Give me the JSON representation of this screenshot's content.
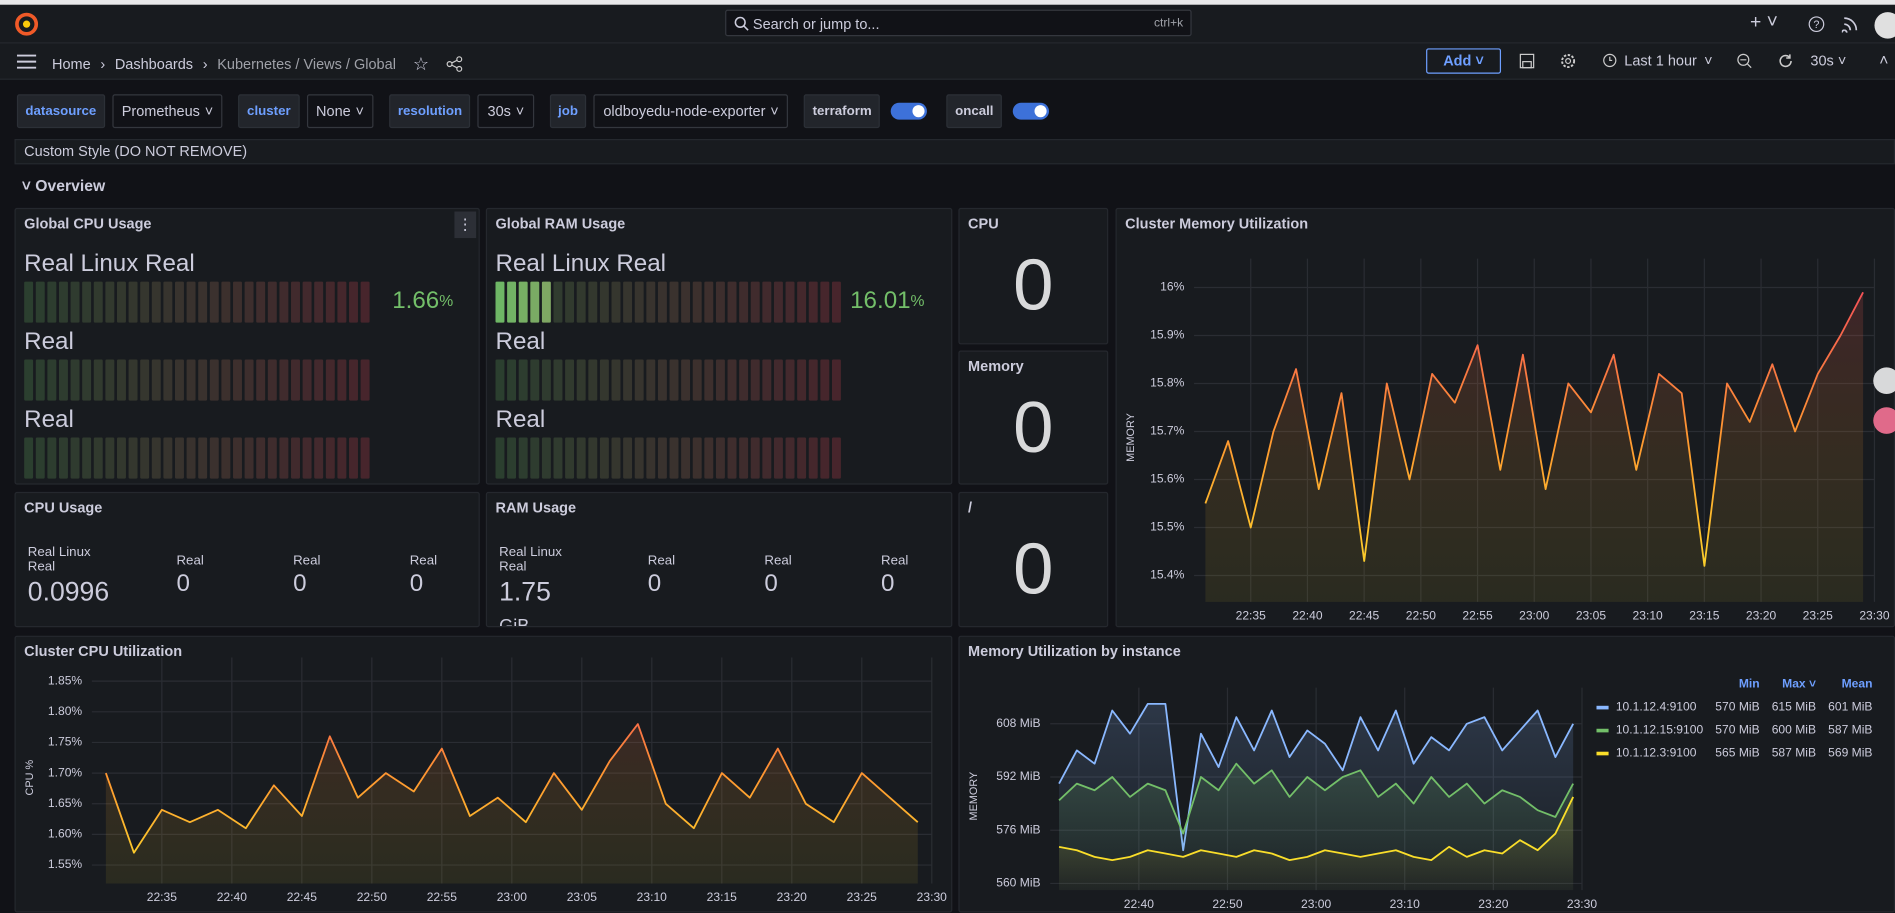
{
  "topbar": {
    "search": "Search or jump to...",
    "shortcut": "ctrl+k"
  },
  "breadcrumbs": [
    "Home",
    "Dashboards",
    "Kubernetes / Views / Global"
  ],
  "toolbar": {
    "add": "Add",
    "time_range": "Last 1 hour",
    "refresh": "30s"
  },
  "variables": [
    {
      "label": "datasource",
      "value": "Prometheus"
    },
    {
      "label": "cluster",
      "value": "None"
    },
    {
      "label": "resolution",
      "value": "30s"
    },
    {
      "label": "job",
      "value": "oldboyedu-node-exporter"
    },
    {
      "label": "terraform",
      "toggle": true
    },
    {
      "label": "oncall",
      "toggle": true
    }
  ],
  "rows": {
    "custom_style": "Custom Style (DO NOT REMOVE)",
    "overview": "Overview"
  },
  "bar_gauges": [
    {
      "title": "Global CPU Usage",
      "min": 0,
      "max": 100,
      "rows": [
        {
          "name": "Real Linux Real",
          "value": 1.66,
          "unit": "%"
        },
        {
          "name": "Real"
        },
        {
          "name": "Real"
        }
      ]
    },
    {
      "title": "Global RAM Usage",
      "min": 0,
      "max": 100,
      "rows": [
        {
          "name": "Real Linux Real",
          "value": 16.01,
          "unit": "%"
        },
        {
          "name": "Real"
        },
        {
          "name": "Real"
        }
      ]
    }
  ],
  "stats": [
    {
      "title": "CPU Usage",
      "items": [
        {
          "name": "Real Linux Real",
          "value": 0.0996
        },
        {
          "name": "Real",
          "value": 0
        },
        {
          "name": "Real",
          "value": 0
        },
        {
          "name": "Real",
          "value": 0
        }
      ]
    },
    {
      "title": "RAM Usage",
      "items": [
        {
          "name": "Real Linux Real",
          "value": 1.75,
          "unit": "GiB"
        },
        {
          "name": "Real",
          "value": 0
        },
        {
          "name": "Real",
          "value": 0
        },
        {
          "name": "Real",
          "value": 0
        }
      ]
    }
  ],
  "big_stats": [
    {
      "title": "CPU",
      "value": 0
    },
    {
      "title": "Memory",
      "value": 0
    },
    {
      "title": "/",
      "value": 0
    }
  ],
  "chart_data": [
    {
      "type": "line",
      "title": "Cluster Memory Utilization",
      "y_label": "MEMORY",
      "x": [
        "22:31",
        "22:33",
        "22:35",
        "22:37",
        "22:39",
        "22:41",
        "22:43",
        "22:45",
        "22:47",
        "22:49",
        "22:51",
        "22:53",
        "22:55",
        "22:57",
        "22:59",
        "23:01",
        "23:03",
        "23:05",
        "23:07",
        "23:09",
        "23:11",
        "23:13",
        "23:15",
        "23:17",
        "23:19",
        "23:21",
        "23:23",
        "23:25",
        "23:27",
        "23:29"
      ],
      "xlim": [
        "22:30",
        "23:30"
      ],
      "xticks": [
        "22:35",
        "22:40",
        "22:45",
        "22:50",
        "22:55",
        "23:00",
        "23:05",
        "23:10",
        "23:15",
        "23:20",
        "23:25",
        "23:30"
      ],
      "ylim": [
        15.345,
        16.03
      ],
      "yticks": [
        {
          "value": 15.4,
          "label": "15.4%"
        },
        {
          "value": 15.5,
          "label": "15.5%"
        },
        {
          "value": 15.6,
          "label": "15.6%"
        },
        {
          "value": 15.7,
          "label": "15.7%"
        },
        {
          "value": 15.8,
          "label": "15.8%"
        },
        {
          "value": 15.9,
          "label": "15.9%"
        },
        {
          "value": 16,
          "label": "16%"
        }
      ],
      "grid": true,
      "series": [
        {
          "colors": [
            "#fade2a",
            "#ff9830",
            "#f2495c"
          ],
          "values": [
            15.55,
            15.68,
            15.5,
            15.7,
            15.83,
            15.58,
            15.78,
            15.43,
            15.8,
            15.6,
            15.82,
            15.76,
            15.88,
            15.62,
            15.86,
            15.58,
            15.8,
            15.74,
            15.86,
            15.62,
            15.82,
            15.78,
            15.42,
            15.8,
            15.72,
            15.84,
            15.7,
            15.82,
            15.9,
            15.99
          ]
        }
      ]
    },
    {
      "type": "line",
      "title": "Cluster CPU Utilization",
      "y_label": "CPU %",
      "x": [
        "22:31",
        "22:33",
        "22:35",
        "22:37",
        "22:39",
        "22:41",
        "22:43",
        "22:45",
        "22:47",
        "22:49",
        "22:51",
        "22:53",
        "22:55",
        "22:57",
        "22:59",
        "23:01",
        "23:03",
        "23:05",
        "23:07",
        "23:09",
        "23:11",
        "23:13",
        "23:15",
        "23:17",
        "23:19",
        "23:21",
        "23:23",
        "23:25",
        "23:27",
        "23:29"
      ],
      "xlim": [
        "22:30",
        "23:30"
      ],
      "xticks": [
        "22:35",
        "22:40",
        "22:45",
        "22:50",
        "22:55",
        "23:00",
        "23:05",
        "23:10",
        "23:15",
        "23:20",
        "23:25",
        "23:30"
      ],
      "ylim": [
        1.52,
        1.865
      ],
      "yticks": [
        {
          "value": 1.55,
          "label": "1.55%"
        },
        {
          "value": 1.6,
          "label": "1.60%"
        },
        {
          "value": 1.65,
          "label": "1.65%"
        },
        {
          "value": 1.7,
          "label": "1.70%"
        },
        {
          "value": 1.75,
          "label": "1.75%"
        },
        {
          "value": 1.8,
          "label": "1.80%"
        },
        {
          "value": 1.85,
          "label": "1.85%"
        }
      ],
      "grid": true,
      "series": [
        {
          "colors": [
            "#fade2a",
            "#ff9830",
            "#f2495c"
          ],
          "values": [
            1.7,
            1.57,
            1.64,
            1.62,
            1.64,
            1.61,
            1.68,
            1.63,
            1.76,
            1.66,
            1.7,
            1.67,
            1.74,
            1.63,
            1.66,
            1.62,
            1.7,
            1.64,
            1.72,
            1.78,
            1.65,
            1.61,
            1.7,
            1.66,
            1.74,
            1.65,
            1.62,
            1.7,
            1.66,
            1.62
          ]
        }
      ]
    },
    {
      "type": "line",
      "title": "Memory Utilization by instance",
      "y_label": "MEMORY",
      "x": [
        "22:31",
        "22:33",
        "22:35",
        "22:37",
        "22:39",
        "22:41",
        "22:43",
        "22:45",
        "22:47",
        "22:49",
        "22:51",
        "22:53",
        "22:55",
        "22:57",
        "22:59",
        "23:01",
        "23:03",
        "23:05",
        "23:07",
        "23:09",
        "23:11",
        "23:13",
        "23:15",
        "23:17",
        "23:19",
        "23:21",
        "23:23",
        "23:25",
        "23:27",
        "23:29"
      ],
      "xlim": [
        "22:30",
        "23:30"
      ],
      "xticks": [
        "22:40",
        "22:50",
        "23:00",
        "23:10",
        "23:20",
        "23:30"
      ],
      "ylim": [
        558,
        614.5
      ],
      "yticks": [
        {
          "value": 560,
          "label": "560 MiB"
        },
        {
          "value": 576,
          "label": "576 MiB"
        },
        {
          "value": 592,
          "label": "592 MiB"
        },
        {
          "value": 608,
          "label": "608 MiB"
        }
      ],
      "grid": true,
      "legend": "right",
      "legend_columns": [
        "Min",
        "Max",
        "Mean"
      ],
      "series": [
        {
          "name": "10.1.12.4:9100",
          "color": "#8ab8ff",
          "values": [
            590,
            600,
            596,
            612,
            605,
            614,
            614,
            570,
            605,
            595,
            610,
            600,
            612,
            598,
            606,
            602,
            594,
            610,
            600,
            612,
            596,
            604,
            600,
            608,
            610,
            600,
            606,
            612,
            598,
            608
          ],
          "legend_values": [
            "570 MiB",
            "615 MiB",
            "601 MiB"
          ]
        },
        {
          "name": "10.1.12.15:9100",
          "color": "#73bf69",
          "values": [
            585,
            590,
            588,
            592,
            586,
            590,
            588,
            575,
            592,
            588,
            596,
            590,
            594,
            586,
            592,
            588,
            592,
            594,
            586,
            590,
            584,
            592,
            586,
            590,
            584,
            588,
            586,
            582,
            580,
            590
          ],
          "legend_values": [
            "570 MiB",
            "600 MiB",
            "587 MiB"
          ]
        },
        {
          "name": "10.1.12.3:9100",
          "color": "#fade2a",
          "values": [
            571,
            570,
            568,
            567,
            568,
            570,
            569,
            568,
            570,
            569,
            568,
            570,
            569,
            567,
            568,
            570,
            569,
            568,
            569,
            570,
            568,
            567,
            571,
            568,
            570,
            569,
            573,
            570,
            575,
            586
          ],
          "legend_values": [
            "565 MiB",
            "587 MiB",
            "569 MiB"
          ]
        }
      ]
    }
  ]
}
